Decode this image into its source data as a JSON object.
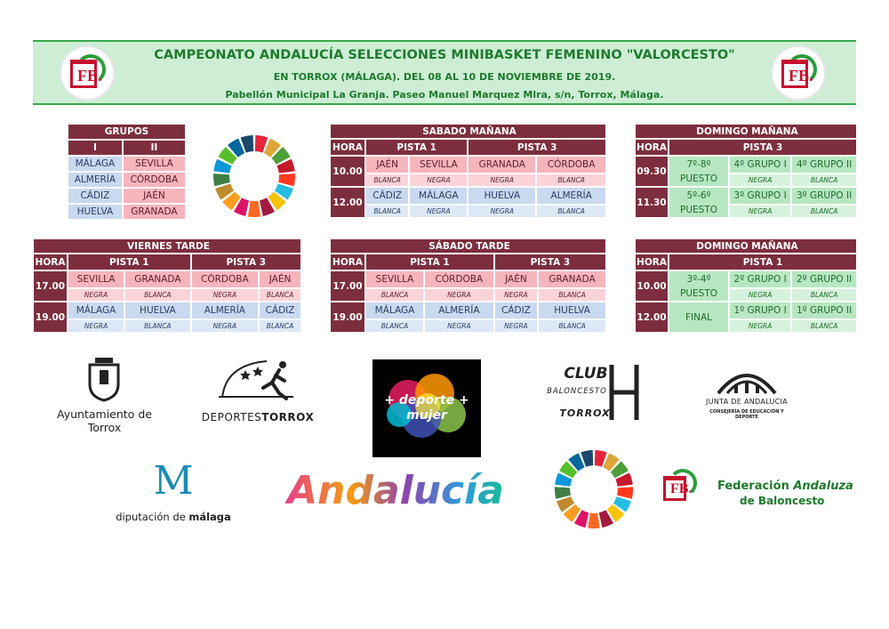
{
  "header": {
    "title": "CAMPEONATO ANDALUCÍA SELECCIONES MINIBASKET FEMENINO \"VALORCESTO\"",
    "subtitle1": "EN TORROX (MÁLAGA). DEL 08 AL 10 DE NOVIEMBRE DE 2019.",
    "subtitle2": "Pabellón Municipal La Granja. Paseo Manuel Marquez Mlra, s/n, Torrox, Málaga.",
    "logo_letters": "FB."
  },
  "grupos": {
    "title": "GRUPOS",
    "col1": "I",
    "col2": "II",
    "rows": [
      [
        "MÁLAGA",
        "SEVILLA"
      ],
      [
        "ALMERÍA",
        "CÓRDOBA"
      ],
      [
        "CÁDIZ",
        "JAÉN"
      ],
      [
        "HUELVA",
        "GRANADA"
      ]
    ]
  },
  "labels": {
    "hora": "HORA",
    "pista1": "PISTA 1",
    "pista3": "PISTA 3"
  },
  "sabado_manana": {
    "title": "SABADO MAÑANA",
    "rows": [
      {
        "hora": "10.00",
        "teams": [
          "JAÉN",
          "SEVILLA",
          "GRANADA",
          "CÓRDOBA"
        ],
        "colors": [
          "BLANCA",
          "NEGRA",
          "NEGRA",
          "BLANCA"
        ]
      },
      {
        "hora": "12.00",
        "teams": [
          "CÁDIZ",
          "MÁLAGA",
          "HUELVA",
          "ALMERÍA"
        ],
        "colors": [
          "BLANCA",
          "NEGRA",
          "NEGRA",
          "BLANCA"
        ]
      }
    ]
  },
  "domingo_manana_p3": {
    "title": "DOMINGO MAÑANA",
    "rows": [
      {
        "hora": "09.30",
        "puesto": "7º-8º PUESTO",
        "teams": [
          "4º GRUPO I",
          "4º GRUPO II"
        ],
        "colors": [
          "NEGRA",
          "BLANCA"
        ]
      },
      {
        "hora": "11.30",
        "puesto": "5º-6º PUESTO",
        "teams": [
          "3º GRUPO I",
          "3º GRUPO II"
        ],
        "colors": [
          "NEGRA",
          "BLANCA"
        ]
      }
    ]
  },
  "viernes_tarde": {
    "title": "VIERNES TARDE",
    "rows": [
      {
        "hora": "17.00",
        "teams": [
          "SEVILLA",
          "GRANADA",
          "CÓRDOBA",
          "JAÉN"
        ],
        "colors": [
          "NEGRA",
          "BLANCA",
          "NEGRA",
          "BLANCA"
        ]
      },
      {
        "hora": "19.00",
        "teams": [
          "MÁLAGA",
          "HUELVA",
          "ALMERÍA",
          "CÁDIZ"
        ],
        "colors": [
          "NEGRA",
          "BLANCA",
          "NEGRA",
          "BLANCA"
        ]
      }
    ]
  },
  "sabado_tarde": {
    "title": "SÁBADO TARDE",
    "rows": [
      {
        "hora": "17.00",
        "teams": [
          "SEVILLA",
          "CÓRDOBA",
          "JAÉN",
          "GRANADA"
        ],
        "colors": [
          "BLANCA",
          "NEGRA",
          "NEGRA",
          "BLANCA"
        ]
      },
      {
        "hora": "19.00",
        "teams": [
          "MÁLAGA",
          "ALMERÍA",
          "CÁDIZ",
          "HUELVA"
        ],
        "colors": [
          "BLANCA",
          "NEGRA",
          "NEGRA",
          "BLANCA"
        ]
      }
    ]
  },
  "domingo_manana_p1": {
    "title": "DOMINGO MAÑANA",
    "rows": [
      {
        "hora": "10.00",
        "puesto": "3º-4º PUESTO",
        "teams": [
          "2º GRUPO I",
          "2º GRUPO II"
        ],
        "colors": [
          "NEGRA",
          "BLANCA"
        ]
      },
      {
        "hora": "12.00",
        "puesto": "FINAL",
        "teams": [
          "1º GRUPO I",
          "1º GRUPO II"
        ],
        "colors": [
          "NEGRA",
          "BLANCA"
        ]
      }
    ]
  },
  "sponsors": {
    "ayuntamiento": "Ayuntamiento de Torrox",
    "deportes_a": "DEPORTES",
    "deportes_b": "TORROX",
    "deporte_mujer": "+ deporte + mujer",
    "club_a": "CLUB",
    "club_b": "BALONCESTO",
    "club_c": "TORROX",
    "junta_a": "JUNTA DE ANDALUCIA",
    "junta_b": "CONSEJERÍA DE EDUCACIÓN Y DEPORTE",
    "diputacion_a": "diputación de",
    "diputacion_b": "málaga",
    "andalucia": "Andalucía",
    "federacion_a": "Federación",
    "federacion_b": "Andaluza",
    "federacion_c": "de Baloncesto"
  },
  "colors": {
    "maroon": "#7d2e3e",
    "pink": "#f6b5bd",
    "blue": "#c9d9ef",
    "green": "#b7e7c1",
    "header_green": "#1e7a2c"
  }
}
